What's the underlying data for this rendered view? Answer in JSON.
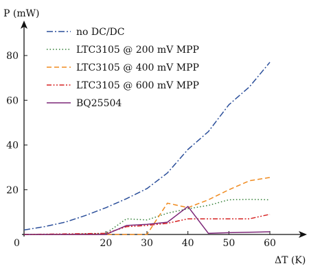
{
  "chart_data": {
    "type": "line",
    "xlabel": "ΔT (K)",
    "ylabel": "P (mW)",
    "xlim": [
      0,
      60
    ],
    "ylim": [
      0,
      80
    ],
    "origin_label": "0",
    "xticks": [
      20,
      30,
      40,
      50,
      60
    ],
    "yticks": [
      20,
      40,
      60,
      80
    ],
    "grid": false,
    "legend_position": "top-left",
    "series": [
      {
        "name": "no DC/DC",
        "color": "#2a4e9a",
        "dash": "dashdot",
        "x": [
          0,
          5,
          10,
          15,
          20,
          25,
          30,
          35,
          40,
          45,
          50,
          55,
          60
        ],
        "y": [
          2,
          3.5,
          5.5,
          8.5,
          12,
          16,
          20.5,
          27.5,
          38,
          46,
          58,
          66,
          77
        ]
      },
      {
        "name": "LTC3105 @ 200 mV MPP",
        "color": "#2e7d32",
        "dash": "dotted",
        "x": [
          0,
          10,
          20,
          25,
          30,
          35,
          40,
          45,
          50,
          55,
          60
        ],
        "y": [
          0,
          0,
          0.5,
          7,
          6.5,
          9.5,
          11.5,
          13,
          15.5,
          15.7,
          15.5
        ]
      },
      {
        "name": "LTC3105 @ 400 mV MPP",
        "color": "#f08a1e",
        "dash": "dashed",
        "x": [
          0,
          20,
          25,
          30,
          35,
          40,
          45,
          50,
          55,
          60
        ],
        "y": [
          0,
          0,
          0,
          0,
          14,
          12,
          15.5,
          20,
          24,
          25.5
        ]
      },
      {
        "name": "LTC3105 @ 600 mV MPP",
        "color": "#d62020",
        "dash": "dashdotdot",
        "x": [
          0,
          20,
          25,
          30,
          35,
          40,
          45,
          50,
          55,
          60
        ],
        "y": [
          0,
          0.5,
          3.5,
          4,
          5,
          7,
          7,
          7,
          7,
          9
        ]
      },
      {
        "name": "BQ25504",
        "color": "#7b2577",
        "dash": "solid",
        "x": [
          0,
          20,
          25,
          30,
          35,
          40,
          45,
          50,
          55,
          60
        ],
        "y": [
          0,
          0,
          4,
          4.5,
          5.5,
          12.5,
          0.5,
          0.8,
          1,
          1.2
        ]
      }
    ]
  }
}
